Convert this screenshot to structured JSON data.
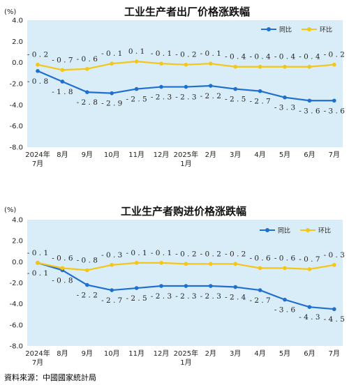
{
  "chart_data": [
    {
      "type": "line",
      "title": "工业生产者出厂价格涨跌幅",
      "yunit": "(%)",
      "ylim": [
        -8.0,
        4.0
      ],
      "yticks": [
        "4.0",
        "2.0",
        "0.0",
        "-2.0",
        "-4.0",
        "-6.0",
        "-8.0"
      ],
      "categories": [
        "2024年\n7月",
        "8月",
        "9月",
        "10月",
        "11月",
        "12月",
        "2025年\n1月",
        "2月",
        "3月",
        "4月",
        "5月",
        "6月",
        "7月"
      ],
      "legend_position": "top-right",
      "grid": false,
      "series": [
        {
          "name": "同比",
          "color": "#1f6fd1",
          "values": [
            -0.8,
            -1.8,
            -2.8,
            -2.9,
            -2.5,
            -2.3,
            -2.3,
            -2.2,
            -2.5,
            -2.7,
            -3.3,
            -3.6,
            -3.6
          ],
          "labels": [
            "-0.8",
            "-1.8",
            "-2.8",
            "-2.9",
            "-2.5",
            "-2.3",
            "-2.3",
            "-2.2",
            "-2.5",
            "-2.7",
            "-3.3",
            "-3.6",
            "-3.6"
          ]
        },
        {
          "name": "环比",
          "color": "#f5c518",
          "values": [
            -0.2,
            -0.7,
            -0.6,
            -0.1,
            0.1,
            -0.1,
            -0.2,
            -0.1,
            -0.4,
            -0.4,
            -0.4,
            -0.4,
            -0.2
          ],
          "labels": [
            "-0.2",
            "-0.7",
            "-0.6",
            "-0.1",
            "0.1",
            "-0.1",
            "-0.2",
            "-0.1",
            "-0.4",
            "-0.4",
            "-0.4",
            "-0.4",
            "-0.2"
          ]
        }
      ]
    },
    {
      "type": "line",
      "title": "工业生产者购进价格涨跌幅",
      "yunit": "(%)",
      "ylim": [
        -8.0,
        4.0
      ],
      "yticks": [
        "4.0",
        "2.0",
        "0.0",
        "-2.0",
        "-4.0",
        "-6.0",
        "-8.0"
      ],
      "categories": [
        "2024年\n7月",
        "8月",
        "9月",
        "10月",
        "11月",
        "12月",
        "2025年\n1月",
        "2月",
        "3月",
        "4月",
        "5月",
        "6月",
        "7月"
      ],
      "legend_position": "top-right",
      "grid": false,
      "series": [
        {
          "name": "同比",
          "color": "#1f6fd1",
          "values": [
            -0.1,
            -0.8,
            -2.2,
            -2.7,
            -2.5,
            -2.3,
            -2.3,
            -2.3,
            -2.4,
            -2.7,
            -3.6,
            -4.3,
            -4.5
          ],
          "labels": [
            "-0.1",
            "-0.8",
            "-2.2",
            "-2.7",
            "-2.5",
            "-2.3",
            "-2.3",
            "-2.3",
            "-2.4",
            "-2.7",
            "-3.6",
            "-4.3",
            "-4.5"
          ]
        },
        {
          "name": "环比",
          "color": "#f5c518",
          "values": [
            -0.1,
            -0.6,
            -0.8,
            -0.3,
            -0.1,
            -0.1,
            -0.2,
            -0.2,
            -0.2,
            -0.6,
            -0.6,
            -0.7,
            -0.3
          ],
          "labels": [
            "-0.1",
            "-0.6",
            "-0.8",
            "-0.3",
            "-0.1",
            "-0.1",
            "-0.2",
            "-0.2",
            "-0.2",
            "-0.6",
            "-0.6",
            "-0.7",
            "-0.3"
          ]
        }
      ]
    }
  ],
  "source": "資料來源：中國國家統計局"
}
